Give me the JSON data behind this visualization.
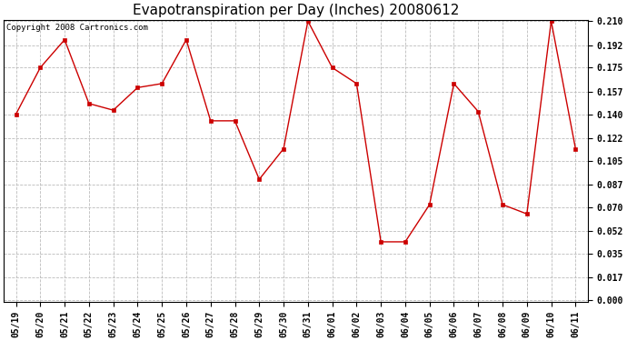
{
  "title": "Evapotranspiration per Day (Inches) 20080612",
  "copyright": "Copyright 2008 Cartronics.com",
  "x_labels": [
    "05/19",
    "05/20",
    "05/21",
    "05/22",
    "05/23",
    "05/24",
    "05/25",
    "05/26",
    "05/27",
    "05/28",
    "05/29",
    "05/30",
    "05/31",
    "06/01",
    "06/02",
    "06/03",
    "06/04",
    "06/05",
    "06/06",
    "06/07",
    "06/08",
    "06/09",
    "06/10",
    "06/11"
  ],
  "y_values": [
    0.14,
    0.175,
    0.196,
    0.148,
    0.143,
    0.16,
    0.163,
    0.196,
    0.135,
    0.135,
    0.091,
    0.114,
    0.21,
    0.175,
    0.163,
    0.044,
    0.044,
    0.072,
    0.163,
    0.142,
    0.072,
    0.065,
    0.21,
    0.114
  ],
  "line_color": "#cc0000",
  "marker_color": "#cc0000",
  "marker_style": "s",
  "marker_size": 2.5,
  "grid_color": "#bbbbbb",
  "background_color": "#ffffff",
  "plot_bg_color": "#ffffff",
  "y_ticks": [
    0.0,
    0.017,
    0.035,
    0.052,
    0.07,
    0.087,
    0.105,
    0.122,
    0.14,
    0.157,
    0.175,
    0.192,
    0.21
  ],
  "ylim": [
    0.0,
    0.21
  ],
  "title_fontsize": 11,
  "copyright_fontsize": 6.5,
  "tick_fontsize": 7,
  "xlabel_fontsize": 7
}
